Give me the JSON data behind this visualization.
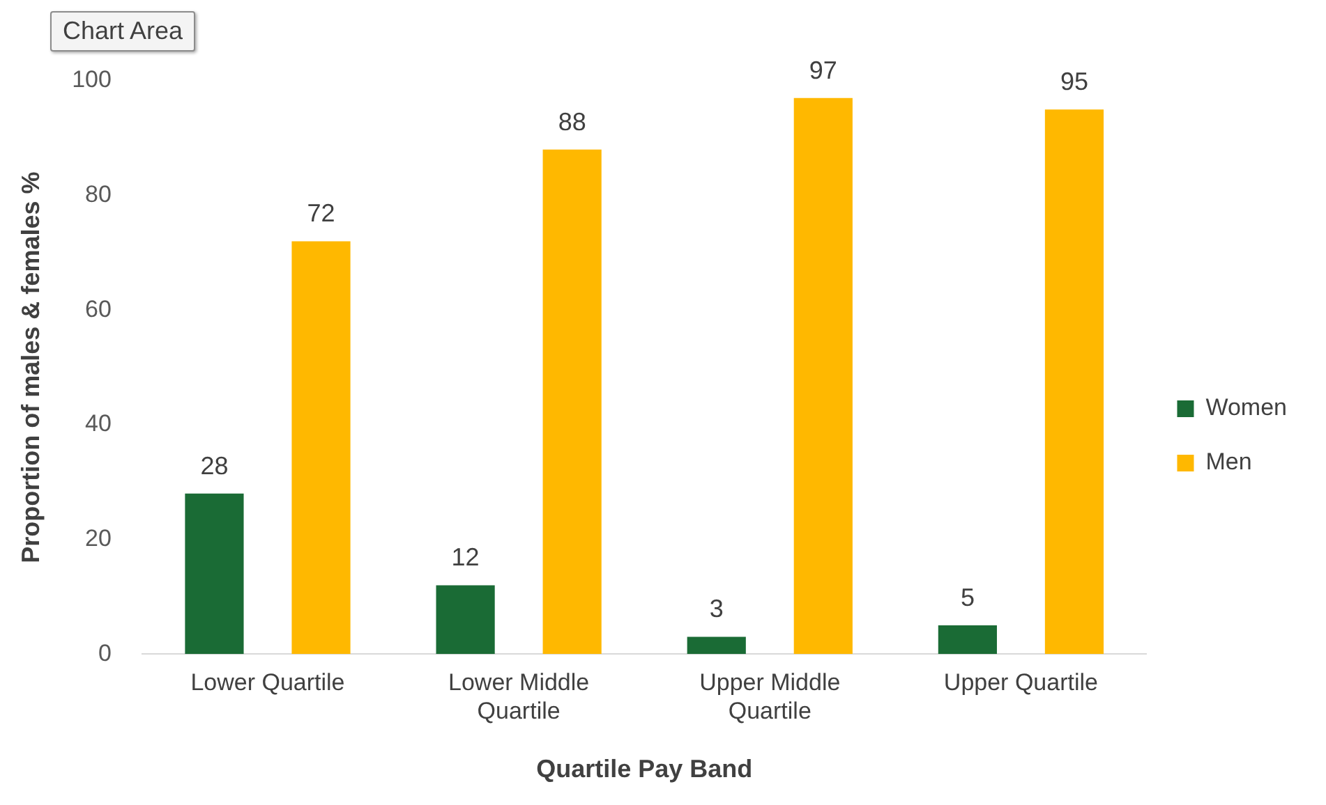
{
  "chart_data": {
    "type": "bar",
    "categories": [
      "Lower Quartile",
      "Lower Middle Quartile",
      "Upper Middle Quartile",
      "Upper Quartile"
    ],
    "series": [
      {
        "name": "Women",
        "color": "#1a6b35",
        "values": [
          28,
          12,
          3,
          5
        ]
      },
      {
        "name": "Men",
        "color": "#ffb800",
        "values": [
          72,
          88,
          97,
          95
        ]
      }
    ],
    "xlabel": "Quartile Pay Band",
    "ylabel": "Proportion of males & females %",
    "ylim": [
      0,
      100
    ],
    "yticks": [
      0,
      20,
      40,
      60,
      80,
      100
    ],
    "grid": false,
    "legend": "right",
    "data_labels": true,
    "annotations": [
      "Chart Area"
    ]
  }
}
